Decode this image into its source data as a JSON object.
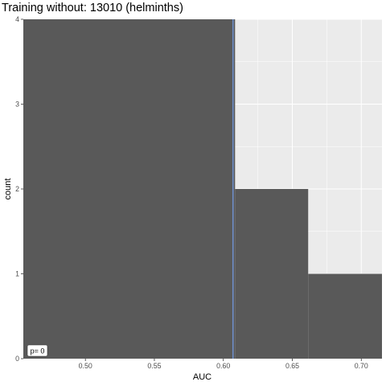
{
  "chart_data": {
    "type": "bar",
    "title": "Training without: 13010 (helminths)",
    "xlabel": "AUC",
    "ylabel": "count",
    "xlim": [
      0.455,
      0.715
    ],
    "ylim": [
      0,
      4
    ],
    "x_ticks": [
      0.5,
      0.55,
      0.6,
      0.65,
      0.7
    ],
    "x_tick_labels": [
      "0.50",
      "0.55",
      "0.60",
      "0.65",
      "0.70"
    ],
    "y_ticks": [
      0,
      1,
      2,
      3,
      4
    ],
    "y_tick_labels": [
      "0",
      "1",
      "2",
      "3",
      "4"
    ],
    "bins": [
      {
        "x0": 0.455,
        "x1": 0.6085,
        "count": 4
      },
      {
        "x0": 0.6085,
        "x1": 0.6615,
        "count": 2
      },
      {
        "x0": 0.6615,
        "x1": 0.715,
        "count": 1
      }
    ],
    "reference_line_x": 0.607,
    "annotation": "p= 0",
    "colors": {
      "bar": "#595959",
      "panel": "#ebebeb",
      "grid": "#ffffff",
      "vline": "#6f8fc9"
    }
  }
}
